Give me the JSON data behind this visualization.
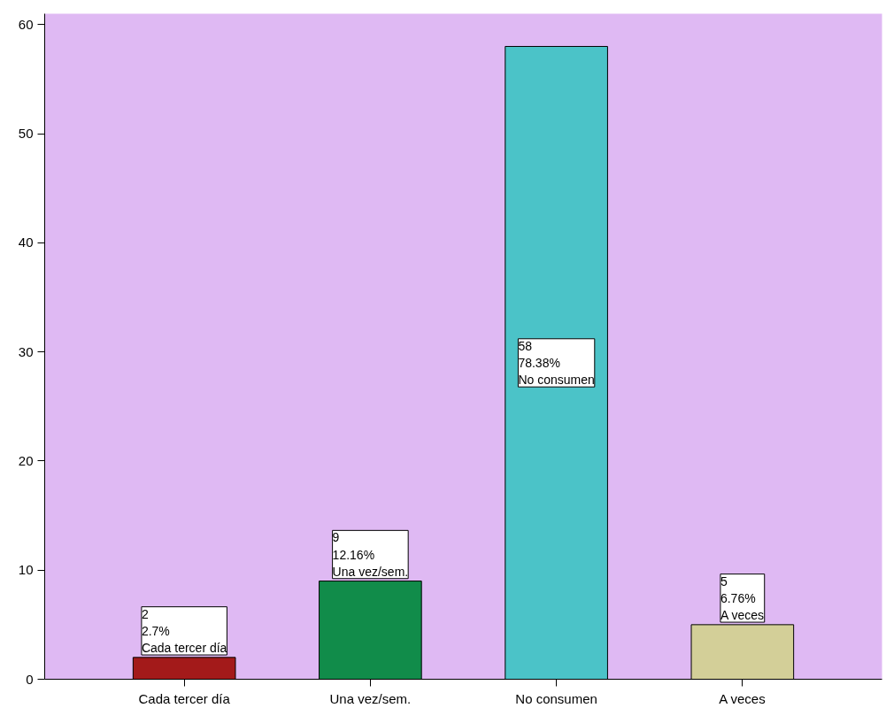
{
  "chart_data": {
    "type": "bar",
    "categories": [
      "Cada tercer día",
      "Una vez/sem.",
      "No consumen",
      "A veces"
    ],
    "values": [
      2,
      9,
      58,
      5
    ],
    "colors": [
      "#a31a1a",
      "#118c4a",
      "#4bc3c8",
      "#d3cf98"
    ],
    "value_labels": [
      "2\n2.7%\nCada tercer día",
      "9\n12.16%\nUna vez/sem.",
      "58\n78.38%\nNo consumen",
      "5\n6.76%\nA veces"
    ],
    "ylim": [
      0,
      61
    ],
    "yticks": [
      0,
      10,
      20,
      30,
      40,
      50,
      60
    ],
    "grid": false
  }
}
